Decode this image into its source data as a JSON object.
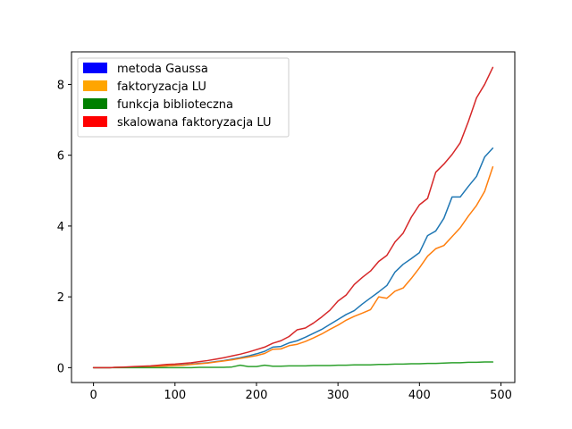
{
  "chart_data": {
    "type": "line",
    "title": "",
    "xlabel": "",
    "ylabel": "",
    "xlim": [
      -27,
      517
    ],
    "ylim": [
      -0.42,
      8.92
    ],
    "xticks": [
      0,
      100,
      200,
      300,
      400,
      500
    ],
    "yticks": [
      0,
      2,
      4,
      6,
      8
    ],
    "grid": false,
    "legend_placement": "top-left",
    "legend": [
      {
        "name": "metoda Gaussa",
        "color": "#0000ff"
      },
      {
        "name": "faktoryzacja LU",
        "color": "#ffa500"
      },
      {
        "name": "funkcja biblioteczna",
        "color": "#008000"
      },
      {
        "name": "skalowana faktoryzacja LU",
        "color": "#ff0000"
      }
    ],
    "x": [
      0,
      10,
      20,
      30,
      40,
      50,
      60,
      70,
      80,
      90,
      100,
      110,
      120,
      130,
      140,
      150,
      160,
      170,
      180,
      190,
      200,
      210,
      220,
      230,
      240,
      250,
      260,
      270,
      280,
      290,
      300,
      310,
      320,
      330,
      340,
      350,
      360,
      370,
      380,
      390,
      400,
      410,
      420,
      430,
      440,
      450,
      460,
      470,
      480,
      490
    ],
    "series": [
      {
        "color": "#1f77b4",
        "values": [
          0,
          0,
          0,
          0.01,
          0.01,
          0.02,
          0.02,
          0.03,
          0.04,
          0.05,
          0.07,
          0.08,
          0.1,
          0.12,
          0.14,
          0.17,
          0.2,
          0.24,
          0.28,
          0.33,
          0.39,
          0.46,
          0.58,
          0.6,
          0.7,
          0.76,
          0.86,
          0.97,
          1.08,
          1.22,
          1.36,
          1.5,
          1.61,
          1.8,
          1.97,
          2.14,
          2.32,
          2.7,
          2.92,
          3.08,
          3.25,
          3.73,
          3.86,
          4.22,
          4.82,
          4.82,
          5.12,
          5.4,
          5.95,
          6.2
        ]
      },
      {
        "color": "#ff7f0e",
        "values": [
          0,
          0,
          0,
          0.01,
          0.01,
          0.02,
          0.02,
          0.03,
          0.04,
          0.05,
          0.06,
          0.07,
          0.09,
          0.11,
          0.13,
          0.16,
          0.19,
          0.22,
          0.26,
          0.3,
          0.34,
          0.4,
          0.52,
          0.53,
          0.62,
          0.66,
          0.74,
          0.84,
          0.95,
          1.08,
          1.2,
          1.34,
          1.45,
          1.54,
          1.64,
          2.0,
          1.96,
          2.16,
          2.25,
          2.52,
          2.82,
          3.15,
          3.36,
          3.45,
          3.7,
          3.95,
          4.28,
          4.58,
          4.98,
          5.67
        ]
      },
      {
        "color": "#2ca02c",
        "values": [
          0,
          0,
          0,
          0,
          0,
          0,
          0,
          0,
          0,
          0,
          0,
          0,
          0,
          0.01,
          0.01,
          0.01,
          0.01,
          0.02,
          0.07,
          0.03,
          0.03,
          0.07,
          0.04,
          0.04,
          0.05,
          0.05,
          0.05,
          0.06,
          0.06,
          0.06,
          0.07,
          0.07,
          0.08,
          0.08,
          0.08,
          0.09,
          0.09,
          0.1,
          0.1,
          0.11,
          0.11,
          0.12,
          0.12,
          0.13,
          0.14,
          0.14,
          0.15,
          0.15,
          0.16,
          0.16
        ]
      },
      {
        "color": "#d62728",
        "values": [
          0,
          0,
          0,
          0.01,
          0.02,
          0.03,
          0.04,
          0.05,
          0.07,
          0.09,
          0.1,
          0.12,
          0.14,
          0.17,
          0.2,
          0.24,
          0.28,
          0.33,
          0.38,
          0.44,
          0.51,
          0.58,
          0.69,
          0.76,
          0.88,
          1.07,
          1.12,
          1.26,
          1.43,
          1.62,
          1.88,
          2.05,
          2.35,
          2.55,
          2.73,
          3.0,
          3.17,
          3.55,
          3.8,
          4.25,
          4.6,
          4.78,
          5.52,
          5.75,
          6.02,
          6.35,
          6.95,
          7.62,
          8.0,
          8.48
        ]
      }
    ]
  }
}
